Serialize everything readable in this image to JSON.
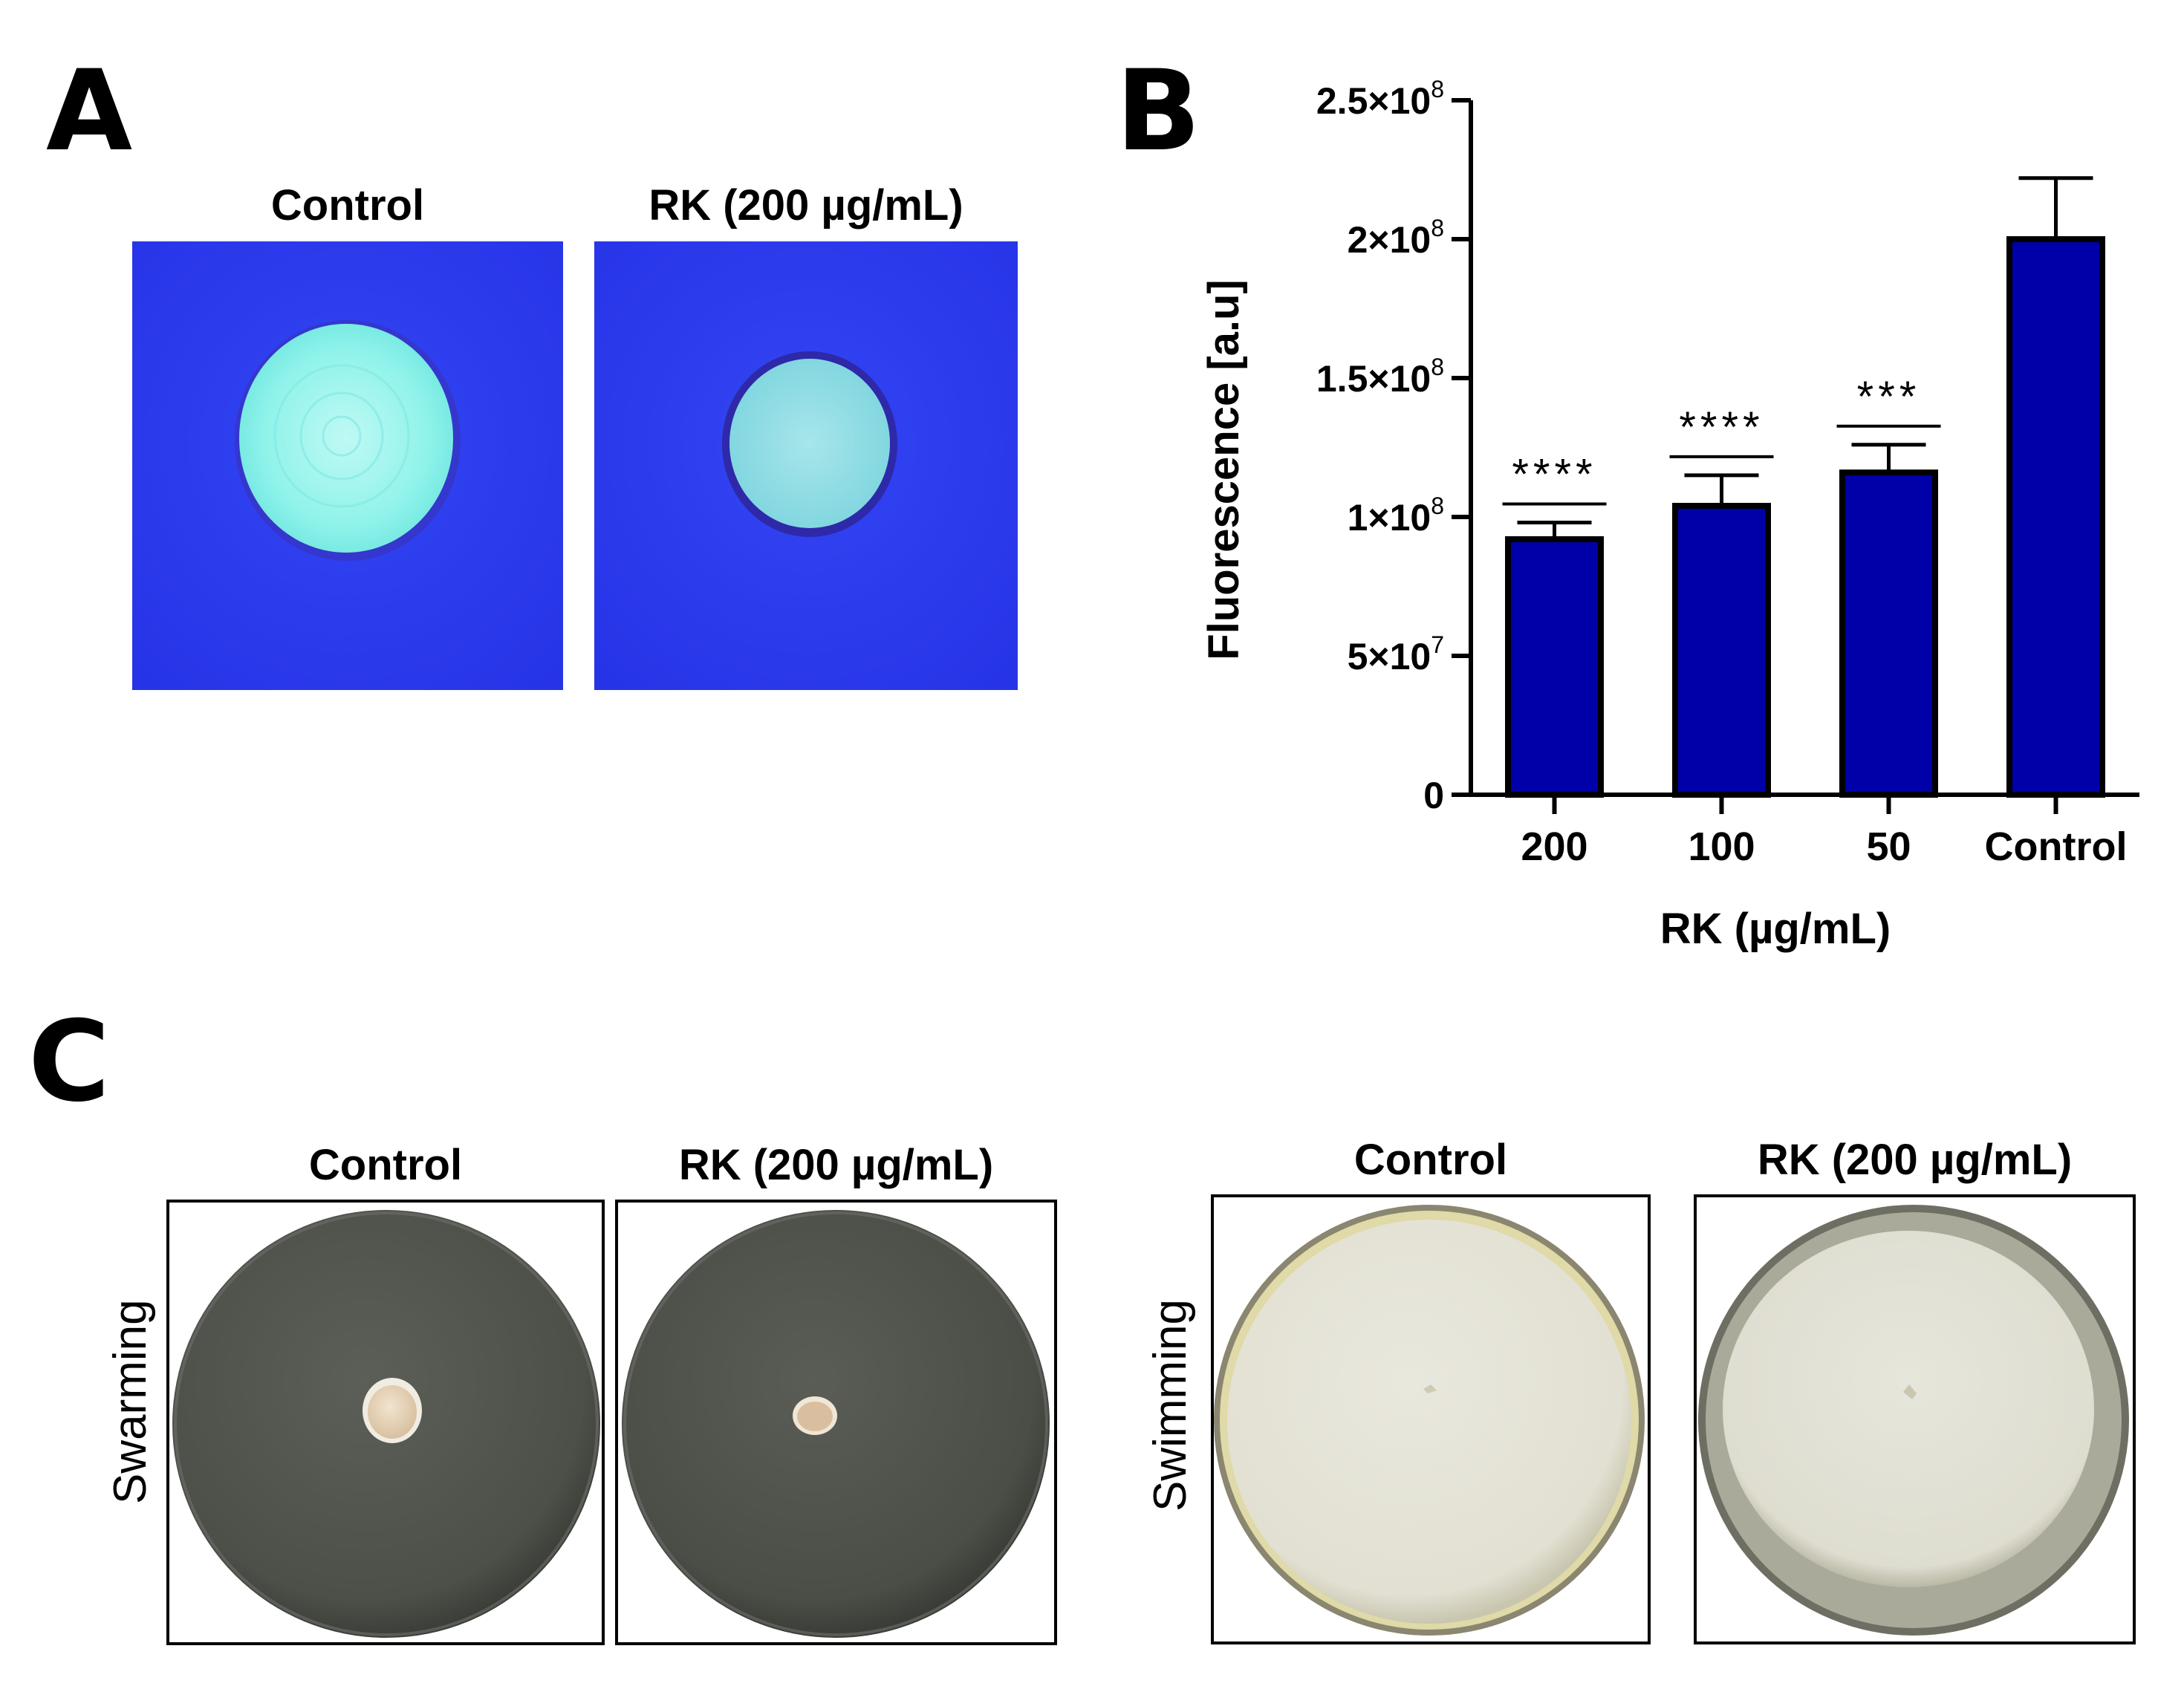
{
  "panel_a": {
    "letter": "A",
    "captions": [
      "Control",
      "RK (200 µg/mL)"
    ]
  },
  "panel_b": {
    "letter": "B"
  },
  "panel_c": {
    "letter": "C",
    "captions": [
      "Control",
      "RK (200 µg/mL)",
      "Control",
      "RK (200 µg/mL)"
    ],
    "row_labels": [
      "Swarming",
      "Swimming"
    ]
  },
  "colors": {
    "bar_fill": "#0000a8",
    "agar_blue": "#2f3ff0",
    "colony_cyan": "#7ef2e8",
    "plate_dark": "#4f514a",
    "plate_light": "#e8e6d8"
  },
  "chart_data": {
    "type": "bar",
    "categories": [
      "200",
      "100",
      "50",
      "Control"
    ],
    "values": [
      92000000,
      104000000,
      116000000,
      200000000
    ],
    "errors": [
      6000000,
      11000000,
      10000000,
      22000000
    ],
    "significance": [
      "****",
      "****",
      "***",
      ""
    ],
    "xlabel": "RK (µg/mL)",
    "ylabel": "Fluorescence [a.u]",
    "ylim": [
      0,
      250000000
    ],
    "yticks": [
      0,
      50000000,
      100000000,
      150000000,
      200000000,
      250000000
    ],
    "ytick_labels": [
      {
        "mant": "0",
        "exp": ""
      },
      {
        "mant": "5×10",
        "exp": "7"
      },
      {
        "mant": "1×10",
        "exp": "8"
      },
      {
        "mant": "1.5×10",
        "exp": "8"
      },
      {
        "mant": "2×10",
        "exp": "8"
      },
      {
        "mant": "2.5×10",
        "exp": "8"
      }
    ],
    "grid": false
  }
}
